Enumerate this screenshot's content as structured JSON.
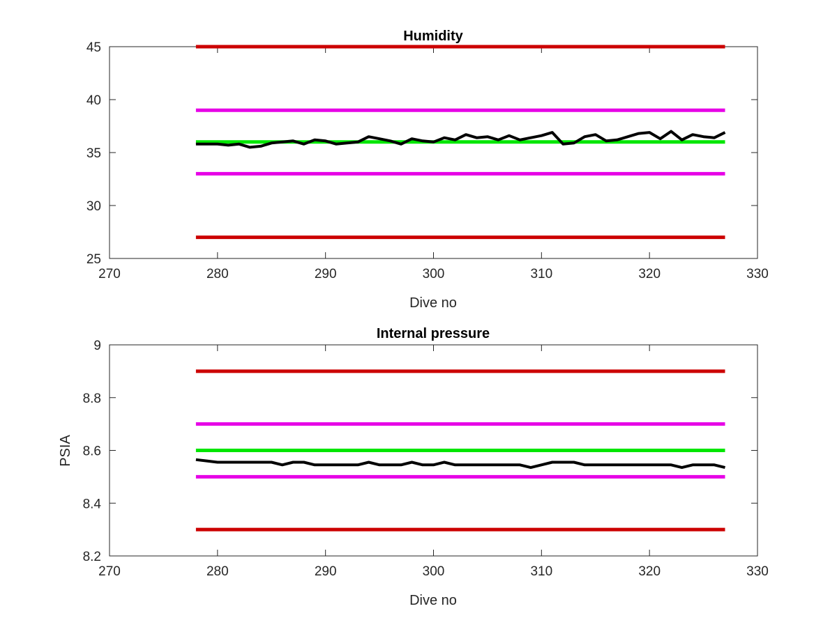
{
  "chart_data": [
    {
      "type": "line",
      "title": "Humidity",
      "xlabel": "Dive no",
      "ylabel": "",
      "xlim": [
        270,
        330
      ],
      "ylim": [
        25,
        45
      ],
      "xticks": [
        270,
        280,
        290,
        300,
        310,
        320,
        330
      ],
      "yticks": [
        25,
        30,
        35,
        40,
        45
      ],
      "grid": false,
      "series": [
        {
          "color": "#cc0000",
          "x": [
            278,
            327
          ],
          "values": [
            45,
            45
          ]
        },
        {
          "color": "#cc0000",
          "x": [
            278,
            327
          ],
          "values": [
            27,
            27
          ]
        },
        {
          "color": "#e600e6",
          "x": [
            278,
            327
          ],
          "values": [
            39,
            39
          ]
        },
        {
          "color": "#e600e6",
          "x": [
            278,
            327
          ],
          "values": [
            33,
            33
          ]
        },
        {
          "color": "#00e600",
          "x": [
            278,
            327
          ],
          "values": [
            36,
            36
          ]
        },
        {
          "color": "#000000",
          "x": [
            278,
            279,
            280,
            281,
            282,
            283,
            284,
            285,
            286,
            287,
            288,
            289,
            290,
            291,
            292,
            293,
            294,
            295,
            296,
            297,
            298,
            299,
            300,
            301,
            302,
            303,
            304,
            305,
            306,
            307,
            308,
            309,
            310,
            311,
            312,
            313,
            314,
            315,
            316,
            317,
            318,
            319,
            320,
            321,
            322,
            323,
            324,
            325,
            326,
            327
          ],
          "values": [
            35.8,
            35.8,
            35.8,
            35.7,
            35.8,
            35.5,
            35.6,
            35.9,
            36.0,
            36.1,
            35.8,
            36.2,
            36.1,
            35.8,
            35.9,
            36.0,
            36.5,
            36.3,
            36.1,
            35.8,
            36.3,
            36.1,
            36.0,
            36.4,
            36.2,
            36.7,
            36.4,
            36.5,
            36.2,
            36.6,
            36.2,
            36.4,
            36.6,
            36.9,
            35.8,
            35.9,
            36.5,
            36.7,
            36.1,
            36.2,
            36.5,
            36.8,
            36.9,
            36.3,
            37.0,
            36.2,
            36.7,
            36.5,
            36.4,
            36.9
          ]
        }
      ]
    },
    {
      "type": "line",
      "title": "Internal pressure",
      "xlabel": "Dive no",
      "ylabel": "PSIA",
      "xlim": [
        270,
        330
      ],
      "ylim": [
        8.2,
        9
      ],
      "xticks": [
        270,
        280,
        290,
        300,
        310,
        320,
        330
      ],
      "yticks": [
        8.2,
        8.4,
        8.6,
        8.8,
        9
      ],
      "grid": false,
      "series": [
        {
          "color": "#cc0000",
          "x": [
            278,
            327
          ],
          "values": [
            8.9,
            8.9
          ]
        },
        {
          "color": "#cc0000",
          "x": [
            278,
            327
          ],
          "values": [
            8.3,
            8.3
          ]
        },
        {
          "color": "#e600e6",
          "x": [
            278,
            327
          ],
          "values": [
            8.7,
            8.7
          ]
        },
        {
          "color": "#e600e6",
          "x": [
            278,
            327
          ],
          "values": [
            8.5,
            8.5
          ]
        },
        {
          "color": "#00e600",
          "x": [
            278,
            327
          ],
          "values": [
            8.6,
            8.6
          ]
        },
        {
          "color": "#000000",
          "x": [
            278,
            279,
            280,
            281,
            282,
            283,
            284,
            285,
            286,
            287,
            288,
            289,
            290,
            291,
            292,
            293,
            294,
            295,
            296,
            297,
            298,
            299,
            300,
            301,
            302,
            303,
            304,
            305,
            306,
            307,
            308,
            309,
            310,
            311,
            312,
            313,
            314,
            315,
            316,
            317,
            318,
            319,
            320,
            321,
            322,
            323,
            324,
            325,
            326,
            327
          ],
          "values": [
            8.565,
            8.56,
            8.555,
            8.555,
            8.555,
            8.555,
            8.555,
            8.555,
            8.545,
            8.555,
            8.555,
            8.545,
            8.545,
            8.545,
            8.545,
            8.545,
            8.555,
            8.545,
            8.545,
            8.545,
            8.555,
            8.545,
            8.545,
            8.555,
            8.545,
            8.545,
            8.545,
            8.545,
            8.545,
            8.545,
            8.545,
            8.535,
            8.545,
            8.555,
            8.555,
            8.555,
            8.545,
            8.545,
            8.545,
            8.545,
            8.545,
            8.545,
            8.545,
            8.545,
            8.545,
            8.535,
            8.545,
            8.545,
            8.545,
            8.535
          ]
        }
      ]
    }
  ]
}
